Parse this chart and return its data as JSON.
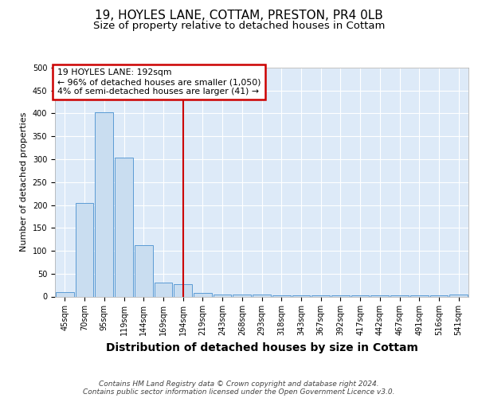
{
  "title1": "19, HOYLES LANE, COTTAM, PRESTON, PR4 0LB",
  "title2": "Size of property relative to detached houses in Cottam",
  "xlabel": "Distribution of detached houses by size in Cottam",
  "ylabel": "Number of detached properties",
  "categories": [
    "45sqm",
    "70sqm",
    "95sqm",
    "119sqm",
    "144sqm",
    "169sqm",
    "194sqm",
    "219sqm",
    "243sqm",
    "268sqm",
    "293sqm",
    "318sqm",
    "343sqm",
    "367sqm",
    "392sqm",
    "417sqm",
    "442sqm",
    "467sqm",
    "491sqm",
    "516sqm",
    "541sqm"
  ],
  "values": [
    10,
    205,
    403,
    303,
    113,
    30,
    27,
    7,
    5,
    4,
    4,
    3,
    2,
    2,
    2,
    2,
    2,
    2,
    2,
    2,
    4
  ],
  "bar_color": "#c9ddf0",
  "bar_edge_color": "#5b9bd5",
  "red_line_index": 6,
  "annotation_line1": "19 HOYLES LANE: 192sqm",
  "annotation_line2": "← 96% of detached houses are smaller (1,050)",
  "annotation_line3": "4% of semi-detached houses are larger (41) →",
  "annotation_box_color": "#ffffff",
  "annotation_box_edge": "#cc0000",
  "footer": "Contains HM Land Registry data © Crown copyright and database right 2024.\nContains public sector information licensed under the Open Government Licence v3.0.",
  "ylim": [
    0,
    500
  ],
  "yticks": [
    0,
    50,
    100,
    150,
    200,
    250,
    300,
    350,
    400,
    450,
    500
  ],
  "bg_color": "#ddeaf8",
  "title1_fontsize": 11,
  "title2_fontsize": 9.5,
  "xlabel_fontsize": 10,
  "ylabel_fontsize": 8,
  "tick_fontsize": 7,
  "footer_fontsize": 6.5
}
